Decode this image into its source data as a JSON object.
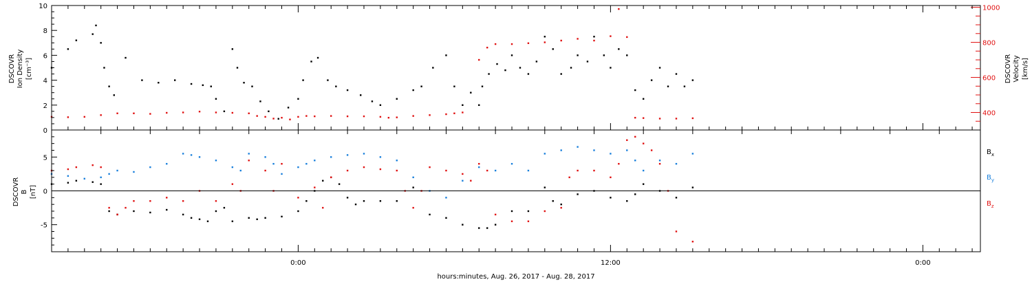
{
  "figure": {
    "xlabel": "hours:minutes, Aug. 26, 2017 - Aug. 28, 2017"
  },
  "chart_data": [
    {
      "type": "scatter",
      "panel": "plasma",
      "ylabel_lines": [
        "DSCOVR",
        "Ion Density",
        "[cm⁻³]"
      ],
      "ylim": [
        0,
        10
      ],
      "yticks": [
        0,
        2,
        4,
        6,
        8,
        10
      ],
      "right_axis": {
        "label_lines": [
          "DSCOVR",
          "Velocity",
          "[km/s]"
        ],
        "ylim": [
          300,
          1010
        ],
        "yticks": [
          400,
          600,
          800,
          1000
        ],
        "color": "#e01010"
      },
      "xlim": [
        -15.0,
        41.5
      ],
      "xticks": [
        {
          "x": 0,
          "label": "0:00"
        },
        {
          "x": 19,
          "label": "12:00"
        },
        {
          "x": 38,
          "label": "0:00"
        }
      ],
      "grid": false,
      "series": [
        {
          "name": "",
          "color": "#000000",
          "axis": "left",
          "x": [
            -15.0,
            -14.0,
            -13.5,
            -12.5,
            -12.3,
            -12.0,
            -11.8,
            -11.5,
            -11.2,
            -10.5,
            -9.5,
            -8.5,
            -7.5,
            -6.5,
            -5.8,
            -5.3,
            -5.0,
            -4.5,
            -4.0,
            -3.7,
            -3.3,
            -2.8,
            -2.3,
            -1.8,
            -1.2,
            -0.6,
            0.0,
            0.3,
            0.8,
            1.2,
            1.8,
            2.3,
            3.0,
            3.8,
            4.5,
            5.0,
            6.0,
            7.0,
            7.5,
            8.2,
            9.0,
            9.5,
            10.0,
            10.5,
            11.0,
            11.2,
            11.6,
            12.1,
            12.6,
            13.0,
            13.5,
            14.0,
            14.5,
            15.0,
            15.5,
            16.0,
            16.6,
            17.0,
            17.6,
            18.0,
            18.6,
            19.0,
            19.5,
            20.0,
            20.5,
            21.0,
            21.5,
            22.0,
            22.5,
            23.0,
            23.5,
            24.0
          ],
          "y": [
            5.0,
            6.5,
            7.2,
            7.7,
            8.4,
            7.0,
            5.0,
            3.5,
            2.8,
            5.8,
            4.0,
            3.8,
            4.0,
            3.7,
            3.6,
            3.5,
            2.5,
            1.5,
            6.5,
            5.0,
            3.8,
            3.5,
            2.3,
            1.5,
            0.9,
            1.8,
            2.5,
            4.0,
            5.5,
            5.8,
            4.0,
            3.5,
            3.2,
            2.8,
            2.3,
            2.0,
            2.5,
            3.2,
            3.5,
            5.0,
            6.0,
            3.5,
            2.0,
            3.0,
            2.0,
            3.5,
            4.5,
            5.3,
            4.8,
            6.0,
            5.0,
            4.5,
            5.5,
            7.5,
            6.5,
            4.5,
            5.0,
            6.0,
            5.5,
            7.5,
            6.0,
            5.0,
            6.5,
            6.0,
            3.2,
            2.5,
            4.0,
            5.0,
            3.5,
            4.5,
            3.5,
            4.0
          ]
        },
        {
          "name": "",
          "color": "#e01010",
          "axis": "right",
          "x": [
            -15.0,
            -14.0,
            -13.0,
            -12.0,
            -11.0,
            -10.0,
            -9.0,
            -8.0,
            -7.0,
            -6.0,
            -5.0,
            -4.0,
            -3.0,
            -2.5,
            -2.0,
            -1.5,
            -1.0,
            -0.5,
            0.0,
            0.5,
            1.0,
            2.0,
            3.0,
            4.0,
            5.0,
            5.5,
            6.0,
            7.0,
            8.0,
            9.0,
            9.5,
            10.0,
            11.0,
            11.5,
            12.0,
            13.0,
            14.0,
            15.0,
            16.0,
            17.0,
            18.0,
            19.0,
            19.5,
            20.0,
            20.5,
            21.0,
            22.0,
            23.0,
            24.0
          ],
          "y": [
            375,
            373,
            375,
            385,
            395,
            395,
            392,
            398,
            400,
            405,
            400,
            398,
            395,
            380,
            375,
            365,
            370,
            360,
            375,
            380,
            378,
            380,
            378,
            378,
            375,
            370,
            372,
            380,
            385,
            390,
            395,
            400,
            700,
            770,
            790,
            790,
            795,
            800,
            810,
            820,
            810,
            835,
            990,
            830,
            370,
            368,
            365,
            365,
            367
          ]
        }
      ]
    },
    {
      "type": "scatter",
      "panel": "magnetic-field",
      "ylabel_lines": [
        "DSCOVR",
        "B",
        "[nT]"
      ],
      "ylim": [
        -9,
        9
      ],
      "yticks": [
        -5,
        0,
        5
      ],
      "zero_line": true,
      "xlim": [
        -15.0,
        41.5
      ],
      "grid": false,
      "legend": "right",
      "series": [
        {
          "name": "Bx",
          "color": "#000000",
          "x": [
            -15.0,
            -14.0,
            -13.5,
            -12.5,
            -12.0,
            -11.5,
            -11.0,
            -10.0,
            -9.0,
            -8.0,
            -7.0,
            -6.5,
            -6.0,
            -5.5,
            -5.0,
            -4.5,
            -4.0,
            -3.0,
            -2.5,
            -2.0,
            -1.0,
            0.0,
            0.5,
            1.0,
            1.5,
            2.0,
            2.5,
            3.0,
            3.5,
            4.0,
            5.0,
            6.0,
            7.0,
            8.0,
            9.0,
            10.0,
            11.0,
            11.5,
            12.0,
            13.0,
            14.0,
            15.0,
            15.5,
            16.0,
            17.0,
            18.0,
            19.0,
            20.0,
            20.5,
            21.0,
            22.0,
            23.0,
            24.0
          ],
          "y": [
            1.0,
            1.2,
            1.5,
            1.3,
            1.0,
            -3.0,
            -3.5,
            -3.0,
            -3.2,
            -2.8,
            -3.5,
            -4.0,
            -4.2,
            -4.5,
            -3.0,
            -2.5,
            -4.5,
            -4.0,
            -4.2,
            -4.0,
            -3.8,
            -3.0,
            -1.5,
            0.0,
            1.5,
            2.0,
            1.0,
            -1.0,
            -2.0,
            -1.5,
            -1.5,
            -1.5,
            0.5,
            -3.5,
            -4.0,
            -5.0,
            -5.5,
            -5.5,
            -5.0,
            -3.0,
            -3.0,
            0.5,
            -1.5,
            -2.0,
            -0.5,
            0.0,
            -1.0,
            -1.5,
            -0.5,
            1.0,
            0.0,
            -1.0,
            0.5
          ]
        },
        {
          "name": "By",
          "color": "#1a80dc",
          "x": [
            -15.0,
            -14.0,
            -13.0,
            -12.0,
            -11.5,
            -11.0,
            -10.0,
            -9.0,
            -8.0,
            -7.0,
            -6.5,
            -6.0,
            -5.0,
            -4.0,
            -3.5,
            -3.0,
            -2.0,
            -1.5,
            -1.0,
            0.0,
            0.5,
            1.0,
            2.0,
            3.0,
            4.0,
            5.0,
            6.0,
            7.0,
            8.0,
            9.0,
            10.0,
            11.0,
            12.0,
            13.0,
            14.0,
            15.0,
            16.0,
            17.0,
            18.0,
            19.0,
            20.0,
            20.5,
            21.0,
            22.0,
            23.0,
            24.0
          ],
          "y": [
            2.5,
            2.2,
            1.8,
            2.0,
            2.5,
            3.0,
            2.8,
            3.5,
            4.0,
            5.5,
            5.3,
            5.0,
            4.5,
            3.5,
            3.0,
            5.5,
            5.0,
            4.0,
            2.5,
            3.5,
            4.0,
            4.5,
            5.0,
            5.3,
            5.5,
            5.0,
            4.5,
            2.0,
            0.0,
            -1.0,
            1.5,
            3.5,
            3.0,
            4.0,
            3.0,
            5.5,
            6.0,
            6.5,
            6.0,
            5.5,
            6.0,
            4.5,
            3.0,
            4.5,
            4.0,
            5.5
          ]
        },
        {
          "name": "Bz",
          "color": "#e01010",
          "x": [
            -15.0,
            -14.0,
            -13.5,
            -12.5,
            -12.0,
            -11.5,
            -11.0,
            -10.5,
            -10.0,
            -9.0,
            -8.0,
            -7.0,
            -6.0,
            -5.0,
            -4.0,
            -3.5,
            -3.0,
            -2.0,
            -1.5,
            -1.0,
            0.0,
            1.0,
            1.5,
            2.0,
            3.0,
            4.0,
            5.0,
            6.0,
            6.5,
            7.0,
            7.5,
            8.0,
            9.0,
            10.0,
            10.5,
            11.0,
            11.5,
            12.0,
            13.0,
            14.0,
            15.0,
            16.0,
            16.5,
            17.0,
            18.0,
            19.0,
            19.5,
            20.0,
            20.5,
            21.0,
            21.5,
            22.0,
            22.5,
            23.0,
            24.0
          ],
          "y": [
            3.0,
            3.2,
            3.5,
            3.8,
            3.5,
            -2.5,
            -3.5,
            -2.5,
            -1.5,
            -1.5,
            -1.0,
            -1.5,
            0.0,
            -1.5,
            1.0,
            0.0,
            4.5,
            3.0,
            0.0,
            4.0,
            -1.0,
            0.5,
            -2.5,
            2.0,
            3.0,
            3.5,
            3.2,
            3.0,
            0.0,
            -2.5,
            0.0,
            3.5,
            3.0,
            2.5,
            1.5,
            4.0,
            3.0,
            -3.5,
            -4.5,
            -4.5,
            -3.0,
            -2.5,
            2.0,
            3.0,
            3.0,
            2.0,
            4.0,
            7.5,
            8.0,
            7.0,
            6.0,
            4.0,
            0.0,
            -6.0,
            -7.5
          ]
        }
      ]
    }
  ]
}
